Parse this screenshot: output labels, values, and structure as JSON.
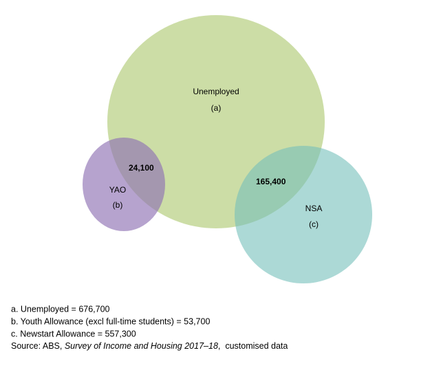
{
  "sets": [
    {
      "label": "Unemployed",
      "tag": "(a)"
    },
    {
      "label": "YAO",
      "tag": "(b)"
    },
    {
      "label": "NSA",
      "tag": "(c)"
    }
  ],
  "intersections": [
    {
      "label": "24,100"
    },
    {
      "label": "165,400"
    }
  ],
  "notes": [
    "a. Unemployed = 676,700",
    "b. Youth Allowance (excl full-time students) = 53,700",
    "c. Newstart Allowance = 557,300"
  ],
  "source": {
    "prefix": "Source: ABS, ",
    "title": "Survey of Income and Housing 2017–18",
    "suffix": ",  customised data"
  }
}
